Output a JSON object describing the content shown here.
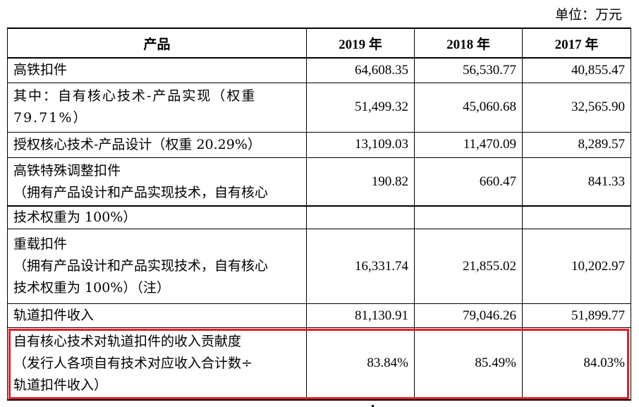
{
  "unit_label": "单位：万元",
  "headers": [
    "产品",
    "2019 年",
    "2018 年",
    "2017 年"
  ],
  "rows_top": [
    {
      "label": [
        "高铁扣件"
      ],
      "v2019": "64,608.35",
      "v2018": "56,530.77",
      "v2017": "40,855.47"
    },
    {
      "label": [
        "其中：自有核心技术-产品实现（权重",
        "79.71%）"
      ],
      "v2019": "51,499.32",
      "v2018": "45,060.68",
      "v2017": "32,565.90"
    },
    {
      "label": [
        "授权核心技术-产品设计（权重 20.29%）"
      ],
      "v2019": "13,109.03",
      "v2018": "11,470.09",
      "v2017": "8,289.57"
    },
    {
      "label": [
        "高铁特殊调整扣件",
        "（拥有产品设计和产品实现技术，自有核心"
      ],
      "v2019": "190.82",
      "v2018": "660.47",
      "v2017": "841.33"
    }
  ],
  "rows_bottom": [
    {
      "label": [
        "技术权重为 100%）"
      ],
      "v2019": "",
      "v2018": "",
      "v2017": ""
    },
    {
      "label": [
        "重载扣件",
        "（拥有产品设计和产品实现技术，自有核心",
        "技术权重为 100%）（注）"
      ],
      "v2019": "16,331.74",
      "v2018": "21,855.02",
      "v2017": "10,202.97"
    },
    {
      "label": [
        "轨道扣件收入"
      ],
      "v2019": "81,130.91",
      "v2018": "79,046.26",
      "v2017": "51,899.77"
    },
    {
      "label": [
        "自有核心技术对轨道扣件的收入贡献度",
        "（发行人各项自有技术对应收入合计数÷",
        "轨道扣件收入）"
      ],
      "v2019": "83.84%",
      "v2018": "85.49%",
      "v2017": "84.03%"
    }
  ],
  "highlight_color": "#e0202a"
}
